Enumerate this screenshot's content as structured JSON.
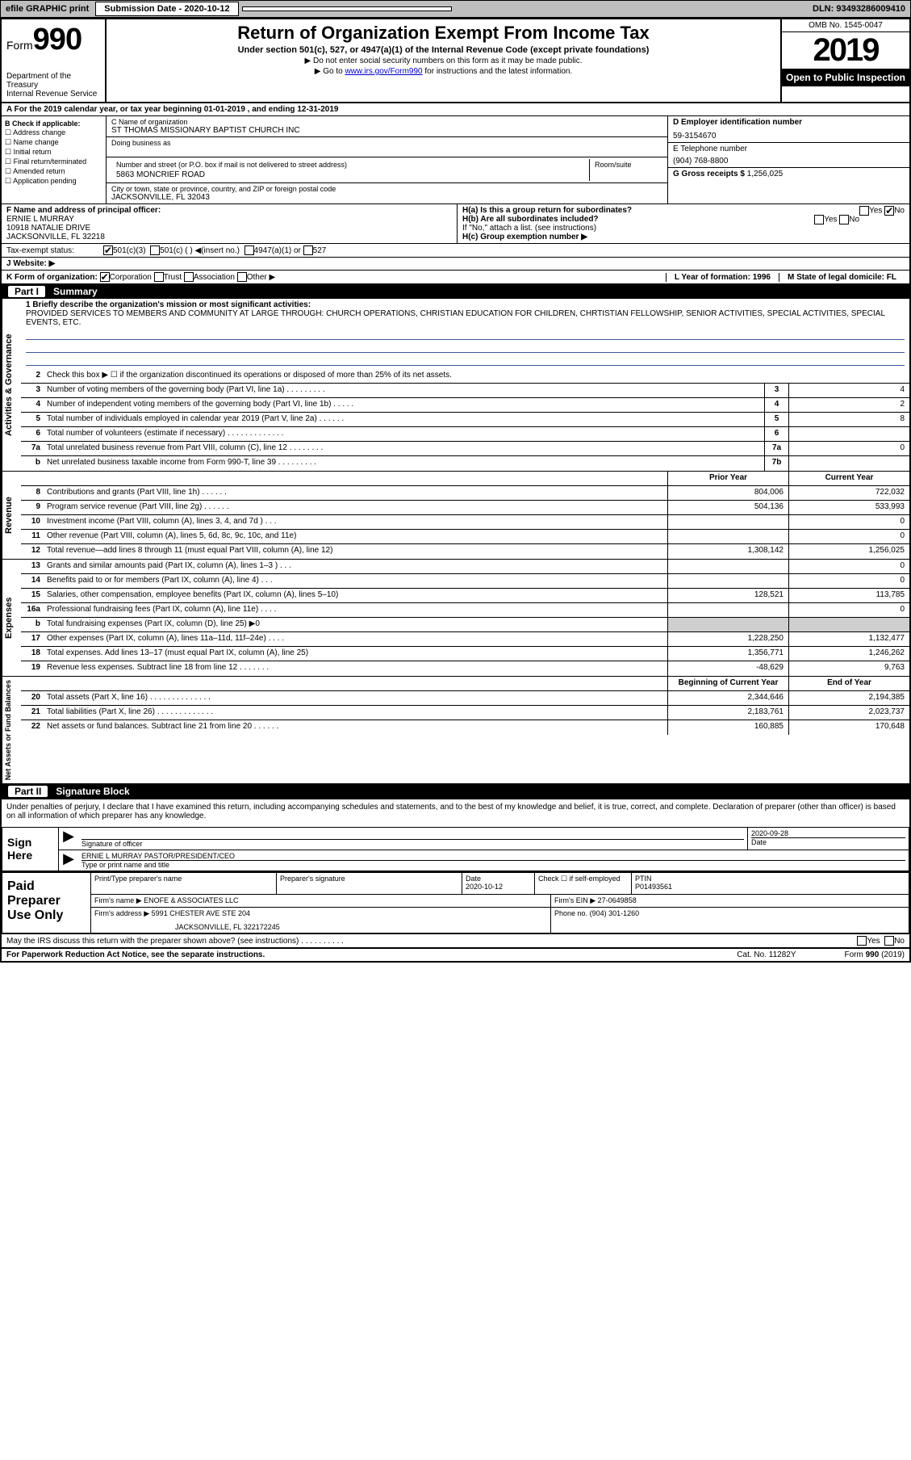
{
  "topbar": {
    "efile": "efile GRAPHIC print",
    "sub_label": "Submission Date - 2020-10-12",
    "dln_label": "DLN: 93493286009410"
  },
  "header": {
    "form_word": "Form",
    "form_num": "990",
    "dept": "Department of the Treasury\nInternal Revenue Service",
    "title": "Return of Organization Exempt From Income Tax",
    "sub": "Under section 501(c), 527, or 4947(a)(1) of the Internal Revenue Code (except private foundations)",
    "sub2": "▶ Do not enter social security numbers on this form as it may be made public.",
    "sub3_pre": "▶ Go to ",
    "sub3_link": "www.irs.gov/Form990",
    "sub3_post": " for instructions and the latest information.",
    "omb": "OMB No. 1545-0047",
    "year": "2019",
    "inspect": "Open to Public Inspection"
  },
  "row_a": "A For the 2019 calendar year, or tax year beginning 01-01-2019   , and ending 12-31-2019",
  "col_b": {
    "hdr": "B Check if applicable:",
    "items": [
      "Address change",
      "Name change",
      "Initial return",
      "Final return/terminated",
      "Amended return",
      "Application pending"
    ]
  },
  "col_c": {
    "name_lbl": "C Name of organization",
    "name": "ST THOMAS MISSIONARY BAPTIST CHURCH INC",
    "dba_lbl": "Doing business as",
    "addr_lbl": "Number and street (or P.O. box if mail is not delivered to street address)",
    "addr": "5863 MONCRIEF ROAD",
    "room_lbl": "Room/suite",
    "city_lbl": "City or town, state or province, country, and ZIP or foreign postal code",
    "city": "JACKSONVILLE, FL  32043"
  },
  "col_d": {
    "ein_lbl": "D Employer identification number",
    "ein": "59-3154670",
    "tel_lbl": "E Telephone number",
    "tel": "(904) 768-8800",
    "gross_lbl": "G Gross receipts $",
    "gross": "1,256,025"
  },
  "section_f": {
    "f_lbl": "F  Name and address of principal officer:",
    "f_name": "ERNIE L MURRAY",
    "f_addr1": "10918 NATALIE DRIVE",
    "f_addr2": "JACKSONVILLE, FL  32218",
    "ha": "H(a)  Is this a group return for subordinates?",
    "hb": "H(b)  Are all subordinates included?",
    "h_note": "If \"No,\" attach a list. (see instructions)",
    "hc": "H(c)  Group exemption number ▶",
    "yes": "Yes",
    "no": "No"
  },
  "tax_status": {
    "lbl": "Tax-exempt status:",
    "c3": "501(c)(3)",
    "c_other": "501(c) (   ) ◀(insert no.)",
    "a1": "4947(a)(1) or",
    "s527": "527"
  },
  "website": {
    "lbl": "J   Website: ▶"
  },
  "row_k": {
    "k": "K Form of organization:",
    "corp": "Corporation",
    "trust": "Trust",
    "assoc": "Association",
    "other": "Other ▶",
    "l": "L Year of formation: 1996",
    "m": "M State of legal domicile: FL"
  },
  "part1": {
    "num": "Part I",
    "title": "Summary",
    "mission_lbl": "1   Briefly describe the organization's mission or most significant activities:",
    "mission": "PROVIDED SERVICES TO MEMBERS AND COMMUNITY AT LARGE THROUGH: CHURCH OPERATIONS, CHRISTIAN EDUCATION FOR CHILDREN, CHRTISTIAN FELLOWSHIP, SENIOR ACTIVITIES, SPECIAL ACTIVITIES, SPECIAL EVENTS, ETC."
  },
  "vlabels": {
    "gov": "Activities & Governance",
    "rev": "Revenue",
    "exp": "Expenses",
    "net": "Net Assets or Fund Balances"
  },
  "gov_rows": [
    {
      "n": "2",
      "d": "Check this box ▶ ☐  if the organization discontinued its operations or disposed of more than 25% of its net assets."
    },
    {
      "n": "3",
      "d": "Number of voting members of the governing body (Part VI, line 1a)  .   .   .   .   .   .   .   .   .",
      "box": "3",
      "v": "4"
    },
    {
      "n": "4",
      "d": "Number of independent voting members of the governing body (Part VI, line 1b)  .   .   .   .   .",
      "box": "4",
      "v": "2"
    },
    {
      "n": "5",
      "d": "Total number of individuals employed in calendar year 2019 (Part V, line 2a)  .   .   .   .   .   .",
      "box": "5",
      "v": "8"
    },
    {
      "n": "6",
      "d": "Total number of volunteers (estimate if necessary)   .   .   .   .   .   .   .   .   .   .   .   .   .",
      "box": "6",
      "v": ""
    },
    {
      "n": "7a",
      "d": "Total unrelated business revenue from Part VIII, column (C), line 12  .   .   .   .   .   .   .   .",
      "box": "7a",
      "v": "0"
    },
    {
      "n": "b",
      "d": "Net unrelated business taxable income from Form 990-T, line 39   .   .   .   .   .   .   .   .   .",
      "box": "7b",
      "v": ""
    }
  ],
  "col_headers": {
    "prior": "Prior Year",
    "current": "Current Year"
  },
  "rev_rows": [
    {
      "n": "8",
      "d": "Contributions and grants (Part VIII, line 1h)  .   .   .   .   .   .",
      "p": "804,006",
      "c": "722,032"
    },
    {
      "n": "9",
      "d": "Program service revenue (Part VIII, line 2g)   .   .   .   .   .   .",
      "p": "504,136",
      "c": "533,993"
    },
    {
      "n": "10",
      "d": "Investment income (Part VIII, column (A), lines 3, 4, and 7d )   .   .   .",
      "p": "",
      "c": "0"
    },
    {
      "n": "11",
      "d": "Other revenue (Part VIII, column (A), lines 5, 6d, 8c, 9c, 10c, and 11e)",
      "p": "",
      "c": "0"
    },
    {
      "n": "12",
      "d": "Total revenue—add lines 8 through 11 (must equal Part VIII, column (A), line 12)",
      "p": "1,308,142",
      "c": "1,256,025"
    }
  ],
  "exp_rows": [
    {
      "n": "13",
      "d": "Grants and similar amounts paid (Part IX, column (A), lines 1–3 )  .   .   .",
      "p": "",
      "c": "0"
    },
    {
      "n": "14",
      "d": "Benefits paid to or for members (Part IX, column (A), line 4)  .   .   .",
      "p": "",
      "c": "0"
    },
    {
      "n": "15",
      "d": "Salaries, other compensation, employee benefits (Part IX, column (A), lines 5–10)",
      "p": "128,521",
      "c": "113,785"
    },
    {
      "n": "16a",
      "d": "Professional fundraising fees (Part IX, column (A), line 11e)  .   .   .   .",
      "p": "",
      "c": "0"
    },
    {
      "n": "b",
      "d": "Total fundraising expenses (Part IX, column (D), line 25) ▶0",
      "shade": true
    },
    {
      "n": "17",
      "d": "Other expenses (Part IX, column (A), lines 11a–11d, 11f–24e)  .   .   .   .",
      "p": "1,228,250",
      "c": "1,132,477"
    },
    {
      "n": "18",
      "d": "Total expenses. Add lines 13–17 (must equal Part IX, column (A), line 25)",
      "p": "1,356,771",
      "c": "1,246,262"
    },
    {
      "n": "19",
      "d": "Revenue less expenses. Subtract line 18 from line 12  .   .   .   .   .   .   .",
      "p": "-48,629",
      "c": "9,763"
    }
  ],
  "net_headers": {
    "begin": "Beginning of Current Year",
    "end": "End of Year"
  },
  "net_rows": [
    {
      "n": "20",
      "d": "Total assets (Part X, line 16)  .   .   .   .   .   .   .   .   .   .   .   .   .   .",
      "p": "2,344,646",
      "c": "2,194,385"
    },
    {
      "n": "21",
      "d": "Total liabilities (Part X, line 26)  .   .   .   .   .   .   .   .   .   .   .   .   .",
      "p": "2,183,761",
      "c": "2,023,737"
    },
    {
      "n": "22",
      "d": "Net assets or fund balances. Subtract line 21 from line 20  .   .   .   .   .   .",
      "p": "160,885",
      "c": "170,648"
    }
  ],
  "part2": {
    "num": "Part II",
    "title": "Signature Block"
  },
  "penalties": "Under penalties of perjury, I declare that I have examined this return, including accompanying schedules and statements, and to the best of my knowledge and belief, it is true, correct, and complete. Declaration of preparer (other than officer) is based on all information of which preparer has any knowledge.",
  "sign": {
    "lbl": "Sign Here",
    "sig_lbl": "Signature of officer",
    "date_lbl": "Date",
    "date": "2020-09-28",
    "name": "ERNIE L MURRAY PASTOR/PRESIDENT/CEO",
    "type_lbl": "Type or print name and title"
  },
  "prep": {
    "lbl": "Paid Preparer Use Only",
    "print_lbl": "Print/Type preparer's name",
    "psig_lbl": "Preparer's signature",
    "date_lbl": "Date",
    "date": "2020-10-12",
    "check_lbl": "Check ☐ if self-employed",
    "ptin_lbl": "PTIN",
    "ptin": "P01493561",
    "firm_lbl": "Firm's name    ▶",
    "firm": "ENOFE & ASSOCIATES LLC",
    "fein_lbl": "Firm's EIN ▶",
    "fein": "27-0649858",
    "faddr_lbl": "Firm's address ▶",
    "faddr1": "5991 CHESTER AVE STE 204",
    "faddr2": "JACKSONVILLE, FL  322172245",
    "phone_lbl": "Phone no.",
    "phone": "(904) 301-1260"
  },
  "discuss": {
    "q": "May the IRS discuss this return with the preparer shown above? (see instructions)   .   .   .   .   .   .   .   .   .   .",
    "yes": "Yes",
    "no": "No"
  },
  "footer": {
    "pra": "For Paperwork Reduction Act Notice, see the separate instructions.",
    "cat": "Cat. No. 11282Y",
    "form": "Form 990 (2019)"
  }
}
